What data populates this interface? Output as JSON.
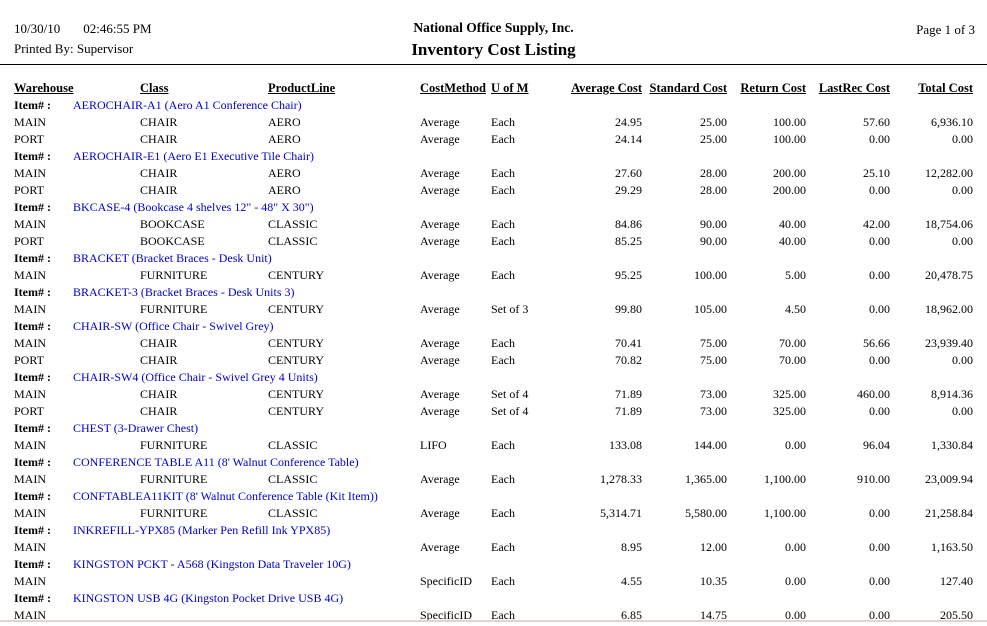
{
  "report_header": {
    "date": "10/30/10",
    "time": "02:46:55 PM",
    "printed_by": "Printed By: Supervisor",
    "company": "National Office Supply, Inc.",
    "title": "Inventory Cost Listing",
    "page": "Page 1 of 3"
  },
  "colors": {
    "item_link_blue": "#0000cc",
    "rule_black": "#000000",
    "bottom_rule_gray": "#ddd6d0"
  },
  "table": {
    "item_label": "Item# :",
    "columns": [
      "Warehouse",
      "Class",
      "ProductLine",
      "CostMethod",
      "U of M",
      "Average Cost",
      "Standard Cost",
      "Return Cost",
      "LastRec Cost",
      "Total Cost"
    ],
    "column_keys": [
      "warehouse",
      "class",
      "productline",
      "costmethod",
      "uofm",
      "average-cost",
      "standard-cost",
      "return-cost",
      "lastrec-cost",
      "total-cost"
    ],
    "items": [
      {
        "item": "AEROCHAIR-A1 (Aero A1 Conference Chair)",
        "rows": [
          [
            "MAIN",
            "CHAIR",
            "AERO",
            "Average",
            "Each",
            "24.95",
            "25.00",
            "100.00",
            "57.60",
            "6,936.10"
          ],
          [
            "PORT",
            "CHAIR",
            "AERO",
            "Average",
            "Each",
            "24.14",
            "25.00",
            "100.00",
            "0.00",
            "0.00"
          ]
        ]
      },
      {
        "item": "AEROCHAIR-E1 (Aero E1 Executive Tile Chair)",
        "rows": [
          [
            "MAIN",
            "CHAIR",
            "AERO",
            "Average",
            "Each",
            "27.60",
            "28.00",
            "200.00",
            "25.10",
            "12,282.00"
          ],
          [
            "PORT",
            "CHAIR",
            "AERO",
            "Average",
            "Each",
            "29.29",
            "28.00",
            "200.00",
            "0.00",
            "0.00"
          ]
        ]
      },
      {
        "item": "BKCASE-4 (Bookcase 4 shelves 12\" - 48\" X 30\")",
        "rows": [
          [
            "MAIN",
            "BOOKCASE",
            "CLASSIC",
            "Average",
            "Each",
            "84.86",
            "90.00",
            "40.00",
            "42.00",
            "18,754.06"
          ],
          [
            "PORT",
            "BOOKCASE",
            "CLASSIC",
            "Average",
            "Each",
            "85.25",
            "90.00",
            "40.00",
            "0.00",
            "0.00"
          ]
        ]
      },
      {
        "item": "BRACKET (Bracket Braces - Desk Unit)",
        "rows": [
          [
            "MAIN",
            "FURNITURE",
            "CENTURY",
            "Average",
            "Each",
            "95.25",
            "100.00",
            "5.00",
            "0.00",
            "20,478.75"
          ]
        ]
      },
      {
        "item": "BRACKET-3 (Bracket Braces - Desk Units 3)",
        "rows": [
          [
            "MAIN",
            "FURNITURE",
            "CENTURY",
            "Average",
            "Set of 3",
            "99.80",
            "105.00",
            "4.50",
            "0.00",
            "18,962.00"
          ]
        ]
      },
      {
        "item": "CHAIR-SW (Office Chair - Swivel Grey)",
        "rows": [
          [
            "MAIN",
            "CHAIR",
            "CENTURY",
            "Average",
            "Each",
            "70.41",
            "75.00",
            "70.00",
            "56.66",
            "23,939.40"
          ],
          [
            "PORT",
            "CHAIR",
            "CENTURY",
            "Average",
            "Each",
            "70.82",
            "75.00",
            "70.00",
            "0.00",
            "0.00"
          ]
        ]
      },
      {
        "item": "CHAIR-SW4 (Office Chair - Swivel Grey 4 Units)",
        "rows": [
          [
            "MAIN",
            "CHAIR",
            "CENTURY",
            "Average",
            "Set of 4",
            "71.89",
            "73.00",
            "325.00",
            "460.00",
            "8,914.36"
          ],
          [
            "PORT",
            "CHAIR",
            "CENTURY",
            "Average",
            "Set of 4",
            "71.89",
            "73.00",
            "325.00",
            "0.00",
            "0.00"
          ]
        ]
      },
      {
        "item": "CHEST (3-Drawer Chest)",
        "rows": [
          [
            "MAIN",
            "FURNITURE",
            "CLASSIC",
            "LIFO",
            "Each",
            "133.08",
            "144.00",
            "0.00",
            "96.04",
            "1,330.84"
          ]
        ]
      },
      {
        "item": "CONFERENCE TABLE A11 (8' Walnut Conference Table)",
        "rows": [
          [
            "MAIN",
            "FURNITURE",
            "CLASSIC",
            "Average",
            "Each",
            "1,278.33",
            "1,365.00",
            "1,100.00",
            "910.00",
            "23,009.94"
          ]
        ]
      },
      {
        "item": "CONFTABLEA11KIT (8' Walnut Conference Table (Kit Item))",
        "rows": [
          [
            "MAIN",
            "FURNITURE",
            "CLASSIC",
            "Average",
            "Each",
            "5,314.71",
            "5,580.00",
            "1,100.00",
            "0.00",
            "21,258.84"
          ]
        ]
      },
      {
        "item": "INKREFILL-YPX85 (Marker Pen Refill Ink YPX85)",
        "rows": [
          [
            "MAIN",
            "",
            "",
            "Average",
            "Each",
            "8.95",
            "12.00",
            "0.00",
            "0.00",
            "1,163.50"
          ]
        ]
      },
      {
        "item": "KINGSTON PCKT - A568 (Kingston Data Traveler 10G)",
        "rows": [
          [
            "MAIN",
            "",
            "",
            "SpecificID",
            "Each",
            "4.55",
            "10.35",
            "0.00",
            "0.00",
            "127.40"
          ]
        ]
      },
      {
        "item": "KINGSTON USB 4G (Kingston Pocket Drive USB 4G)",
        "rows": [
          [
            "MAIN",
            "",
            "",
            "SpecificID",
            "Each",
            "6.85",
            "14.75",
            "0.00",
            "0.00",
            "205.50"
          ]
        ]
      }
    ]
  }
}
